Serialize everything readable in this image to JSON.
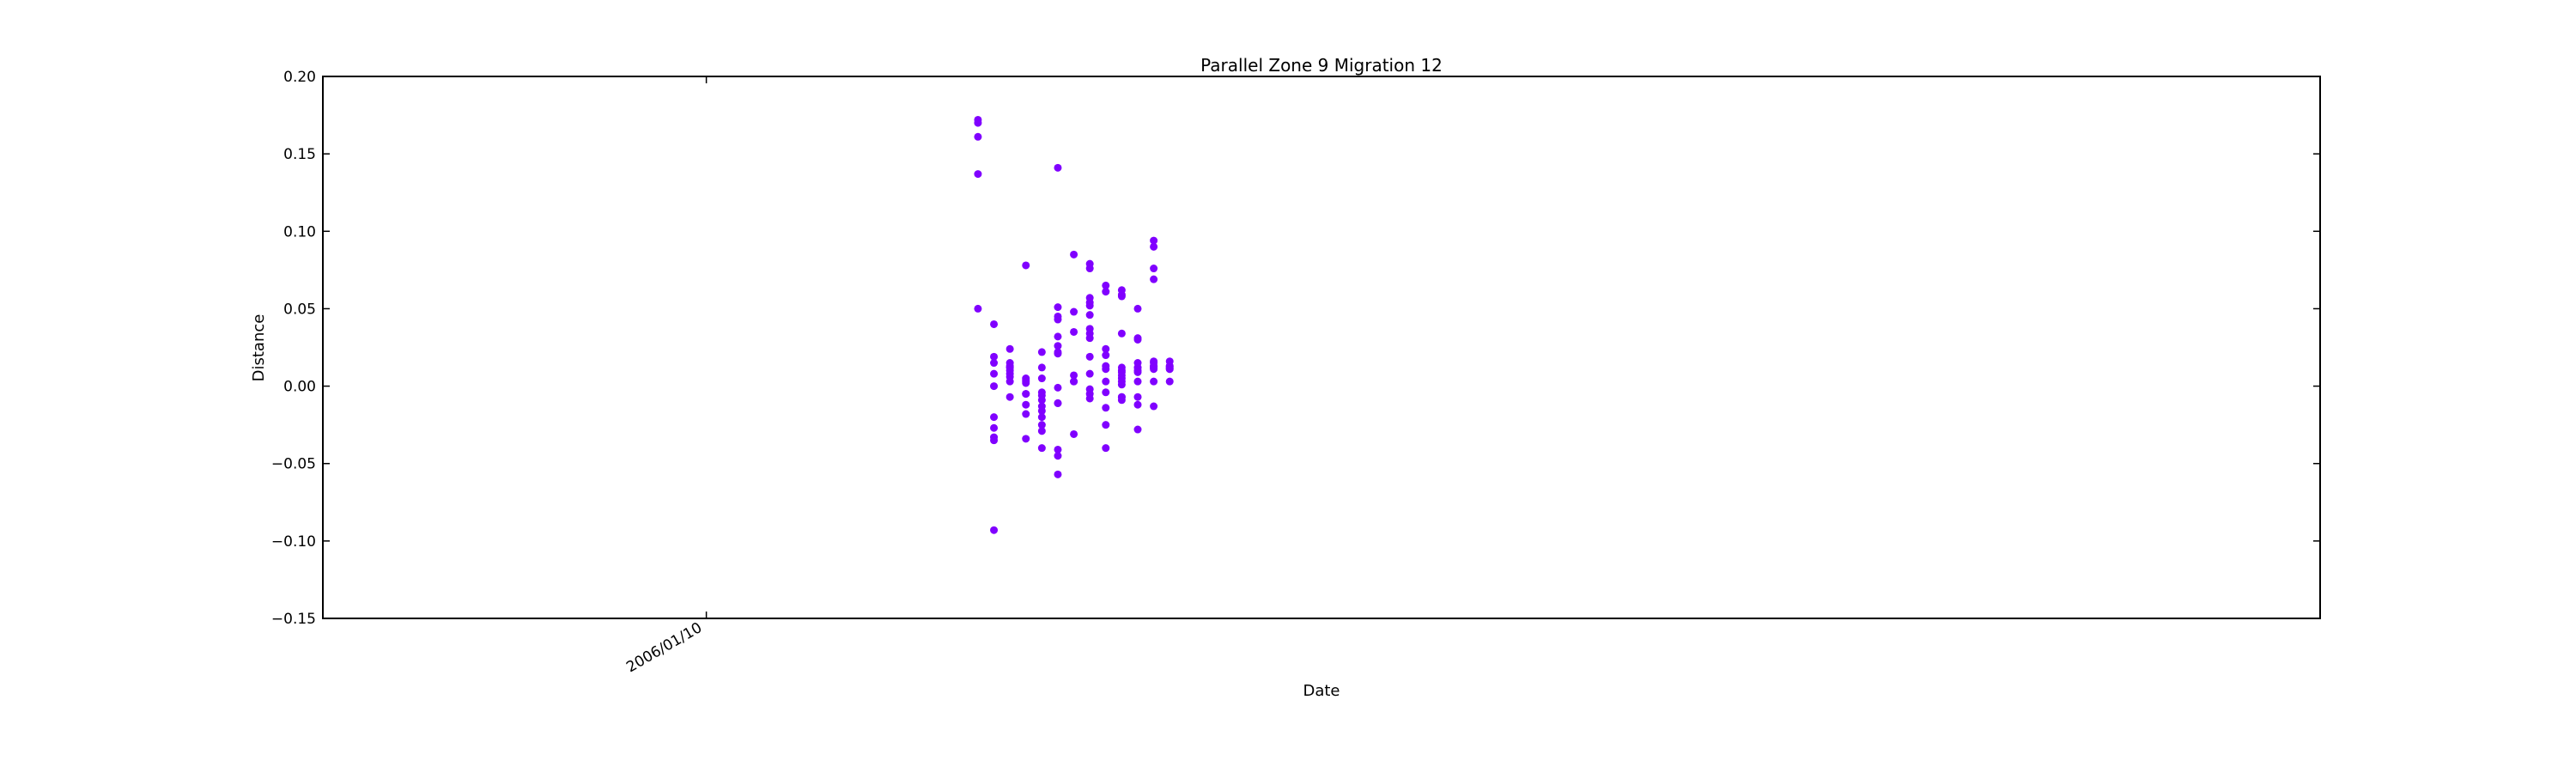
{
  "chart_data": {
    "type": "scatter",
    "title": "Parallel Zone 9 Migration 12",
    "xlabel": "Date",
    "ylabel": "Distance",
    "ylim": [
      -0.15,
      0.2
    ],
    "yticks": [
      -0.15,
      -0.1,
      -0.05,
      0.0,
      0.05,
      0.1,
      0.15,
      0.2
    ],
    "ytick_labels": [
      "−0.15",
      "−0.10",
      "−0.05",
      "0.00",
      "0.05",
      "0.10",
      "0.15",
      "0.20"
    ],
    "x_tick_dates": [
      "2006/01/10"
    ],
    "x_tick_labels": [
      "2006/01/10"
    ],
    "xlim": [
      "2005/12/17",
      "2006/04/21"
    ],
    "grid": false,
    "marker_color": "#8000ff",
    "series": [
      {
        "x": [
          "2006/01/27",
          "2006/01/27",
          "2006/01/27",
          "2006/01/27",
          "2006/01/27",
          "2006/01/28",
          "2006/01/28",
          "2006/01/28",
          "2006/01/28",
          "2006/01/28",
          "2006/01/28",
          "2006/01/28",
          "2006/01/28",
          "2006/01/28",
          "2006/01/28",
          "2006/01/29",
          "2006/01/29",
          "2006/01/29",
          "2006/01/29",
          "2006/01/29",
          "2006/01/29",
          "2006/01/29",
          "2006/01/29",
          "2006/01/29",
          "2006/01/29",
          "2006/01/30",
          "2006/01/30",
          "2006/01/30",
          "2006/01/30",
          "2006/01/30",
          "2006/01/30",
          "2006/01/30",
          "2006/01/30",
          "2006/01/30",
          "2006/01/30",
          "2006/01/31",
          "2006/01/31",
          "2006/01/31",
          "2006/01/31",
          "2006/01/31",
          "2006/01/31",
          "2006/01/31",
          "2006/01/31",
          "2006/01/31",
          "2006/01/31",
          "2006/01/31",
          "2006/01/31",
          "2006/02/01",
          "2006/02/01",
          "2006/02/01",
          "2006/02/01",
          "2006/02/01",
          "2006/02/01",
          "2006/02/01",
          "2006/02/01",
          "2006/02/01",
          "2006/02/01",
          "2006/02/01",
          "2006/02/01",
          "2006/02/01",
          "2006/02/01",
          "2006/02/02",
          "2006/02/02",
          "2006/02/02",
          "2006/02/02",
          "2006/02/02",
          "2006/02/02",
          "2006/02/02",
          "2006/02/03",
          "2006/02/03",
          "2006/02/03",
          "2006/02/03",
          "2006/02/03",
          "2006/02/03",
          "2006/02/03",
          "2006/02/03",
          "2006/02/03",
          "2006/02/03",
          "2006/02/03",
          "2006/02/03",
          "2006/02/03",
          "2006/02/03",
          "2006/02/04",
          "2006/02/04",
          "2006/02/04",
          "2006/02/04",
          "2006/02/04",
          "2006/02/04",
          "2006/02/04",
          "2006/02/04",
          "2006/02/04",
          "2006/02/04",
          "2006/02/04",
          "2006/02/05",
          "2006/02/05",
          "2006/02/05",
          "2006/02/05",
          "2006/02/05",
          "2006/02/05",
          "2006/02/05",
          "2006/02/05",
          "2006/02/05",
          "2006/02/05",
          "2006/02/05",
          "2006/02/05",
          "2006/02/05",
          "2006/02/05",
          "2006/02/06",
          "2006/02/06",
          "2006/02/06",
          "2006/02/06",
          "2006/02/06",
          "2006/02/06",
          "2006/02/06",
          "2006/02/06",
          "2006/02/06",
          "2006/02/06",
          "2006/02/06",
          "2006/02/06",
          "2006/02/07",
          "2006/02/07",
          "2006/02/07",
          "2006/02/07",
          "2006/02/07",
          "2006/02/07",
          "2006/02/07",
          "2006/02/07",
          "2006/02/07",
          "2006/02/07",
          "2006/02/07",
          "2006/02/07",
          "2006/02/07",
          "2006/02/08",
          "2006/02/08",
          "2006/02/08",
          "2006/02/08",
          "2006/02/08",
          "2006/02/08",
          "2006/02/08",
          "2006/02/08"
        ],
        "y": [
          0.137,
          0.17,
          0.161,
          0.172,
          0.05,
          0.019,
          -0.093,
          0.015,
          -0.027,
          -0.02,
          -0.033,
          -0.035,
          0.0,
          0.04,
          0.008,
          0.006,
          0.024,
          0.012,
          0.008,
          0.012,
          0.015,
          -0.007,
          0.003,
          0.01,
          0.013,
          -0.034,
          -0.012,
          -0.018,
          0.078,
          0.005,
          -0.005,
          0.002,
          -0.005,
          0.004,
          0.003,
          -0.009,
          -0.004,
          -0.025,
          -0.029,
          0.012,
          -0.006,
          -0.04,
          0.005,
          0.022,
          -0.013,
          -0.02,
          -0.016,
          0.021,
          0.051,
          0.043,
          -0.011,
          0.032,
          0.026,
          0.045,
          0.022,
          -0.045,
          0.141,
          -0.011,
          -0.001,
          -0.041,
          -0.057,
          -0.031,
          0.048,
          0.003,
          0.085,
          0.007,
          0.035,
          0.003,
          0.076,
          0.031,
          0.057,
          0.037,
          0.034,
          0.052,
          0.054,
          -0.002,
          -0.008,
          0.019,
          0.079,
          0.046,
          -0.005,
          0.008,
          0.003,
          0.011,
          0.065,
          0.061,
          -0.004,
          -0.025,
          -0.014,
          0.024,
          0.02,
          -0.04,
          0.013,
          0.012,
          0.059,
          -0.007,
          0.062,
          0.058,
          0.034,
          0.007,
          -0.009,
          0.001,
          0.003,
          0.005,
          0.009,
          -0.007,
          0.01,
          0.015,
          0.003,
          0.031,
          0.05,
          -0.012,
          -0.007,
          0.03,
          -0.028,
          0.01,
          0.012,
          0.012,
          0.009,
          0.011,
          0.003,
          0.015,
          -0.013,
          0.013,
          0.076,
          0.094,
          0.09,
          0.069,
          0.012,
          0.016,
          0.013,
          0.012,
          0.012,
          0.011,
          0.013,
          0.016,
          0.003,
          0.011,
          0.012,
          0.013
        ]
      }
    ]
  }
}
